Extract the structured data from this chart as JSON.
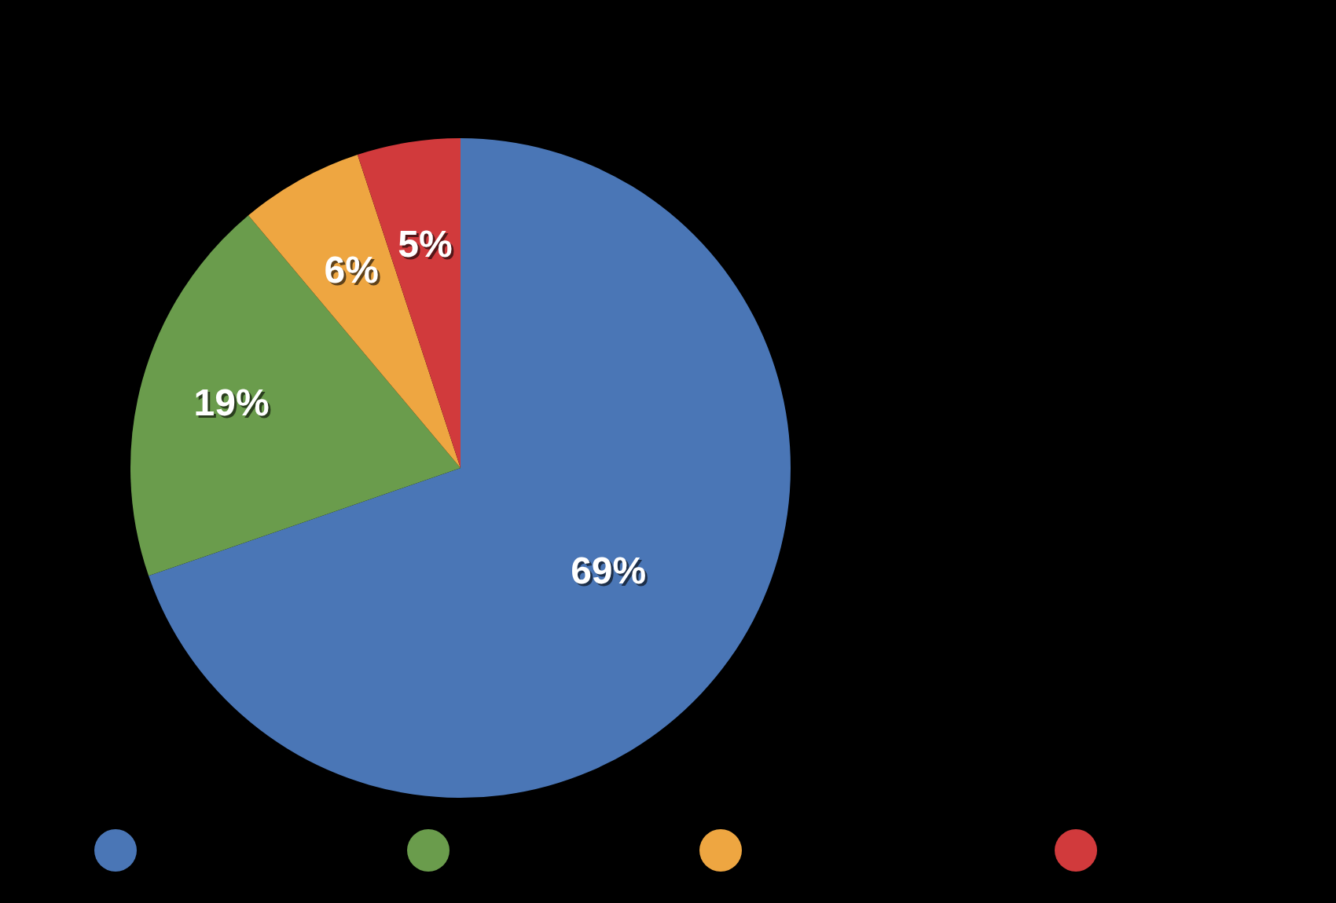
{
  "chart_data": {
    "type": "pie",
    "categories": [
      null,
      null,
      null,
      null
    ],
    "values": [
      69,
      19,
      6,
      5
    ],
    "colors": [
      "#4a76b6",
      "#6a9c4c",
      "#eea641",
      "#d13a3c"
    ],
    "value_labels": [
      "69%",
      "19%",
      "6%",
      "5%"
    ]
  }
}
